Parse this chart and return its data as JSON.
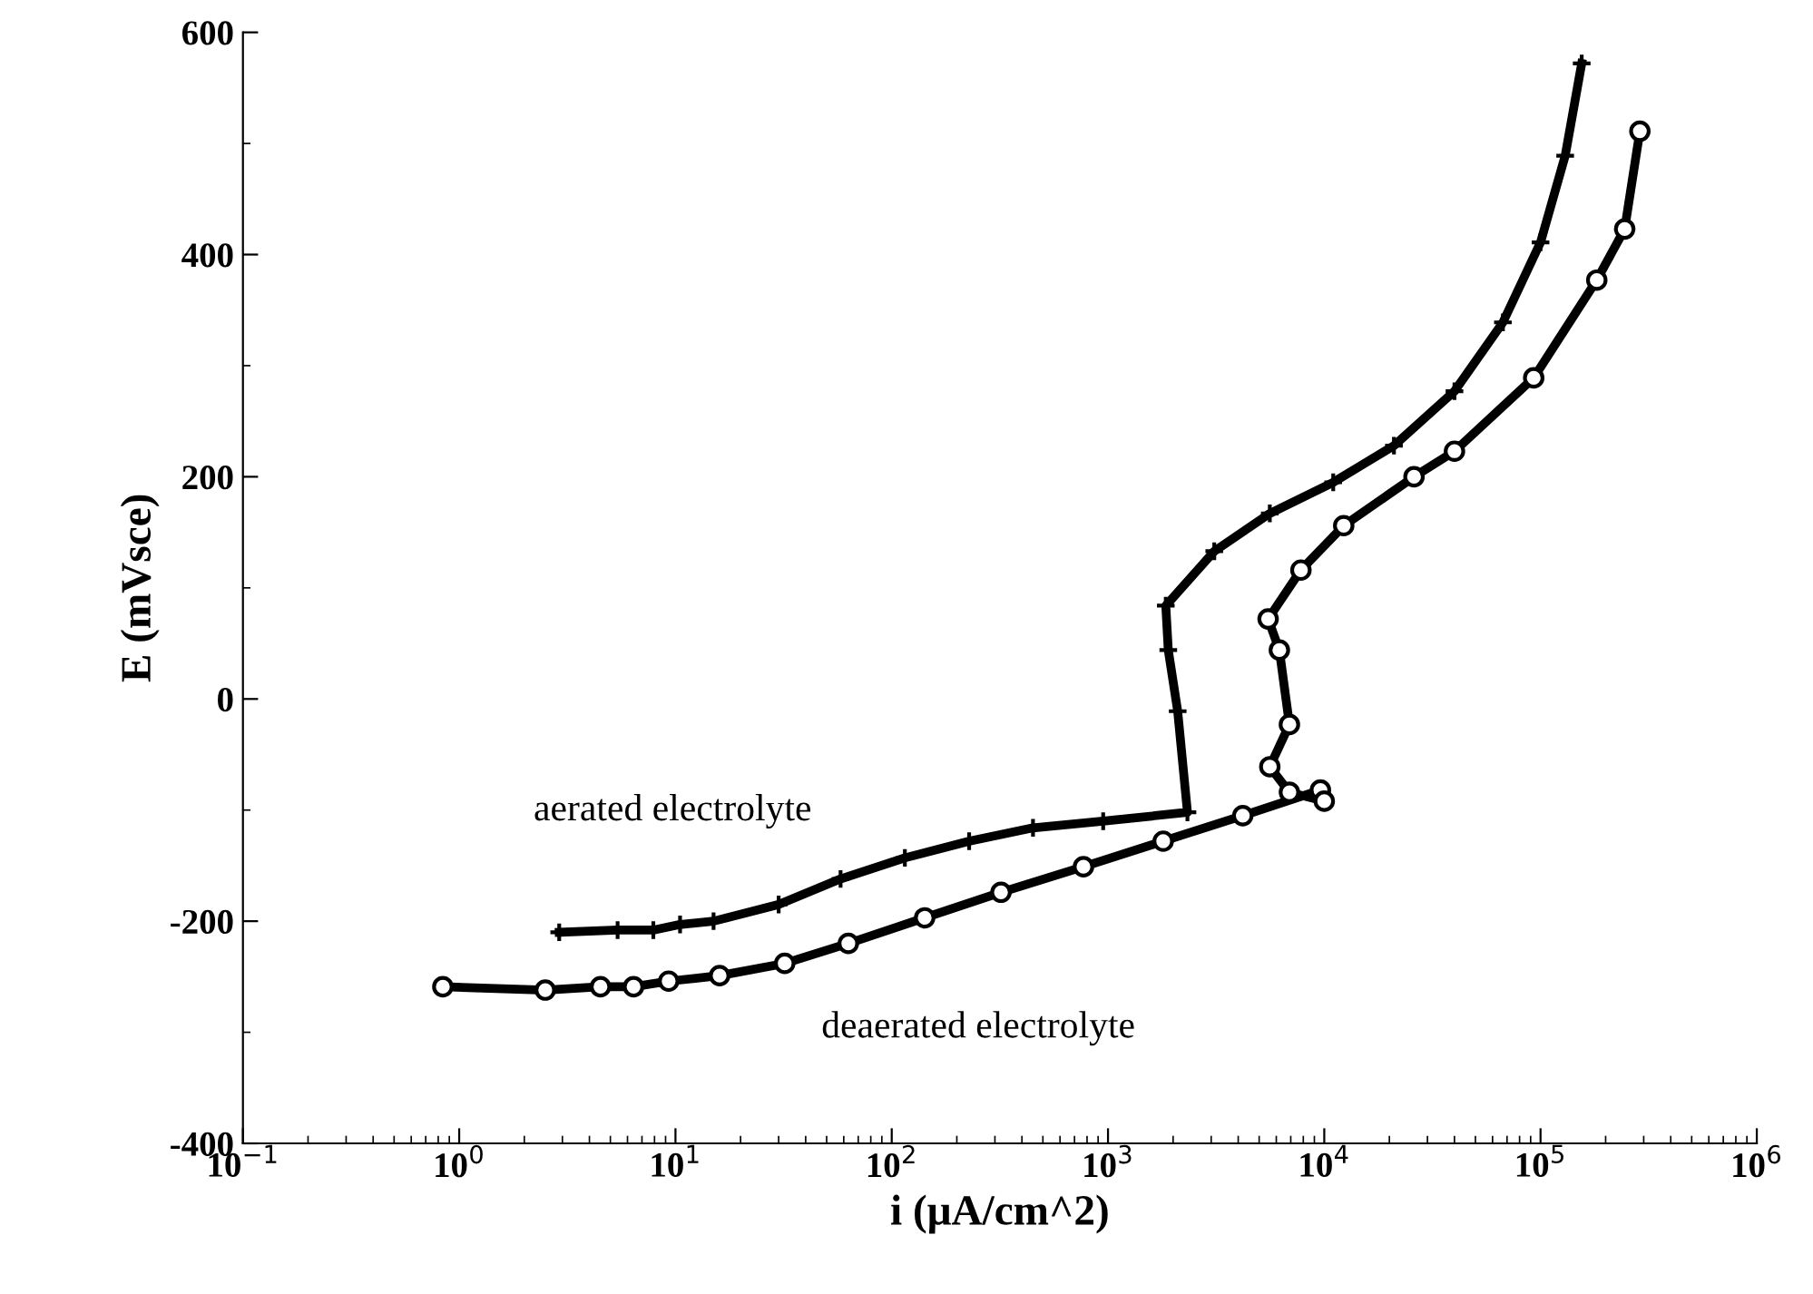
{
  "chart_data": {
    "type": "line",
    "xlabel": "i (μA/cm^2)",
    "ylabel": "E (mVsce)",
    "log": "x",
    "grid": false,
    "legend": false,
    "xlim": [
      0.1,
      1000000
    ],
    "ylim": [
      -400,
      600
    ],
    "xticks": [
      {
        "value": 0.1,
        "label": "10$^{−1}$"
      },
      {
        "value": 1,
        "label": "10$^{0}$"
      },
      {
        "value": 10,
        "label": "10$^{1}$"
      },
      {
        "value": 100,
        "label": "10$^{2}$"
      },
      {
        "value": 1000,
        "label": "10$^{3}$"
      },
      {
        "value": 10000,
        "label": "10$^{4}$"
      },
      {
        "value": 100000,
        "label": "10$^{5}$"
      },
      {
        "value": 1000000,
        "label": "10$^{6}$"
      }
    ],
    "yticks": [
      -400,
      -200,
      0,
      200,
      400,
      600
    ],
    "series": [
      {
        "name": "aerated electrolyte",
        "color": "#000000",
        "marker": "cross",
        "x": [
          2.9,
          5.4,
          7.9,
          10.5,
          15,
          30,
          58,
          115,
          228,
          450,
          950,
          2330,
          2100,
          1900,
          1850,
          3100,
          5600,
          11000,
          21000,
          40000,
          67000,
          100000,
          130000,
          155000
        ],
        "values": [
          -210,
          -208,
          -208,
          -203,
          -200,
          -185,
          -162,
          -143,
          -128,
          -116,
          -110,
          -102,
          -11,
          44,
          84,
          133,
          167,
          195,
          228,
          277,
          339,
          411,
          489,
          572
        ]
      },
      {
        "name": "deaerated electrolyte",
        "color": "#000000",
        "marker": "circle",
        "x": [
          0.84,
          2.5,
          4.5,
          6.4,
          9.3,
          16,
          32,
          63,
          142,
          320,
          770,
          1800,
          4200,
          9600,
          10000,
          6900,
          5600,
          6900,
          6200,
          5500,
          7800,
          12300,
          26000,
          40000,
          93000,
          182000,
          245000,
          288000
        ],
        "values": [
          -259,
          -262,
          -259,
          -259,
          -254,
          -249,
          -238,
          -220,
          -197,
          -174,
          -151,
          -128,
          -105,
          -82,
          -92,
          -84,
          -61,
          -23,
          44,
          72,
          116,
          156,
          200,
          223,
          289,
          377,
          423,
          511
        ]
      }
    ]
  }
}
